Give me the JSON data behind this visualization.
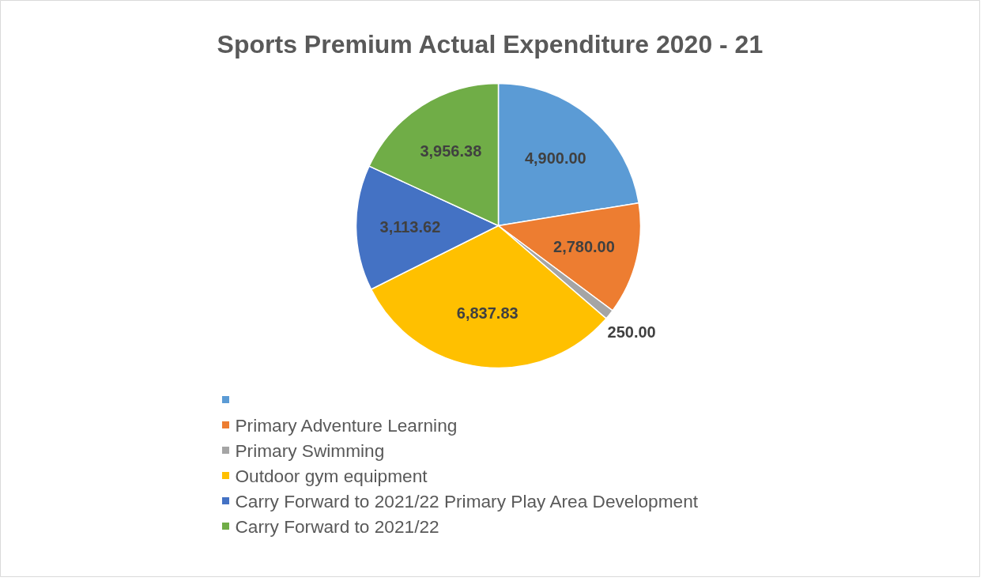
{
  "chart_data": {
    "type": "pie",
    "title": "Sports Premium Actual Expenditure 2020 - 21",
    "categories": [
      null,
      "Primary Adventure Learning",
      "Primary Swimming",
      "Outdoor gym equipment",
      "Carry Forward to 2021/22 Primary Play Area Development",
      "Carry Forward to 2021/22"
    ],
    "values": [
      4900.0,
      2780.0,
      250.0,
      6837.83,
      3113.62,
      3956.38
    ],
    "colors": [
      "#5b9bd5",
      "#ed7d31",
      "#a5a5a5",
      "#ffc000",
      "#4472c4",
      "#70ad47"
    ],
    "value_labels": [
      "4,900.00",
      "2,780.00",
      "250.00",
      "6,837.83",
      "3,113.62",
      "3,956.38"
    ],
    "legend": "bottom"
  }
}
